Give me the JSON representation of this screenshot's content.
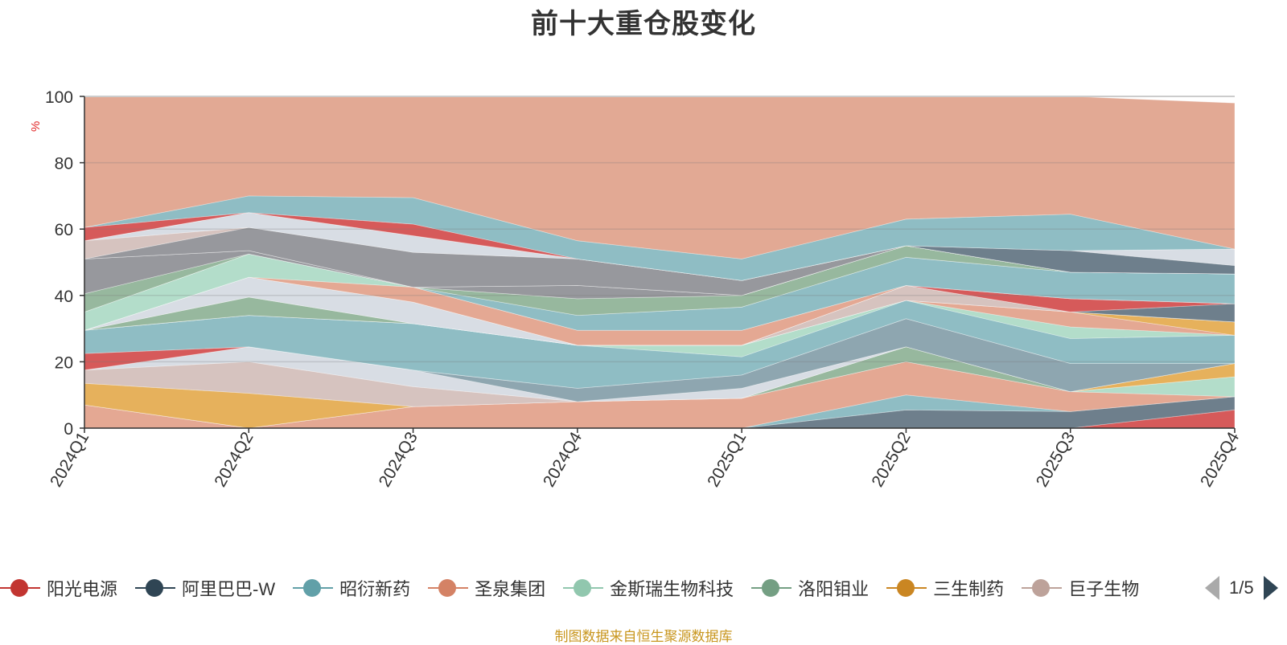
{
  "title": "前十大重仓股变化",
  "source_note": "制图数据来自恒生聚源数据库",
  "legend_page": "1/5",
  "chart_data": {
    "type": "area",
    "stacked": true,
    "title": "前十大重仓股变化",
    "ylabel": "%",
    "xlabel": "",
    "ylim": [
      0,
      100
    ],
    "yticks": [
      0,
      20,
      40,
      60,
      80,
      100
    ],
    "categories": [
      "2024Q1",
      "2024Q2",
      "2024Q3",
      "2024Q4",
      "2025Q1",
      "2025Q2",
      "2025Q3",
      "2025Q4"
    ],
    "boundaries": [
      [
        0,
        0,
        0,
        0,
        0,
        0,
        0,
        0
      ],
      [
        0,
        0,
        0,
        0,
        0,
        0,
        0,
        5.5
      ],
      [
        0,
        0,
        0,
        0,
        0,
        5.5,
        5,
        9.5
      ],
      [
        0,
        0,
        0,
        0,
        0,
        10,
        5,
        9.5
      ],
      [
        7,
        0,
        6.5,
        8,
        9,
        20,
        11,
        9.5
      ],
      [
        7,
        0,
        6.5,
        8,
        9,
        20,
        11,
        15.5
      ],
      [
        7,
        0,
        6.5,
        8,
        9,
        24.5,
        11,
        15.5
      ],
      [
        13.5,
        10.5,
        6.5,
        8,
        9,
        24.5,
        11,
        19.5
      ],
      [
        17.5,
        20,
        12.5,
        8,
        9,
        24.5,
        11,
        19.5
      ],
      [
        17.5,
        24.5,
        17.5,
        8,
        12,
        24.5,
        11,
        19.5
      ],
      [
        17.5,
        24.5,
        17.5,
        12,
        16,
        33,
        19.5,
        19.5
      ],
      [
        22.5,
        24.5,
        17.5,
        12,
        16,
        33,
        19.5,
        19.5
      ],
      [
        29.5,
        34,
        31.5,
        25,
        21.5,
        38.5,
        27,
        28
      ],
      [
        29.5,
        34,
        31.5,
        25,
        25,
        38.5,
        30.5,
        28
      ],
      [
        29.5,
        34,
        31.5,
        25,
        25,
        38.5,
        35,
        28
      ],
      [
        29.5,
        34,
        31.5,
        25,
        25,
        38.5,
        35,
        32
      ],
      [
        29.5,
        39.5,
        31.5,
        25,
        25,
        38.5,
        35,
        32
      ],
      [
        29.5,
        39.5,
        31.5,
        25,
        25,
        43,
        35,
        32
      ],
      [
        29.5,
        45.5,
        38,
        25,
        25,
        43,
        35,
        32
      ],
      [
        29.5,
        45.5,
        38,
        25,
        25,
        43,
        35,
        37.5
      ],
      [
        29.5,
        45.5,
        38,
        25,
        25,
        43,
        39,
        37.5
      ],
      [
        29.5,
        45.5,
        42.5,
        29.5,
        29.5,
        43,
        39,
        37.5
      ],
      [
        35,
        52.5,
        42.5,
        29.5,
        29.5,
        43,
        39,
        37.5
      ],
      [
        35,
        52.5,
        42.5,
        34,
        36.5,
        51.5,
        47,
        46.5
      ],
      [
        35,
        52.5,
        42.5,
        34,
        36.5,
        51.5,
        47,
        46.5
      ],
      [
        40.5,
        52.5,
        42.5,
        39,
        40,
        55,
        47,
        46.5
      ],
      [
        40.5,
        52.5,
        42.5,
        39,
        40,
        55,
        47,
        46.5
      ],
      [
        51,
        53.5,
        42.5,
        43,
        40,
        55,
        47,
        46.5
      ],
      [
        51,
        53.5,
        42.5,
        43,
        40,
        55,
        47,
        46.5
      ],
      [
        51,
        53.5,
        42.5,
        43,
        40,
        55,
        47,
        46.5
      ],
      [
        51,
        60.5,
        53,
        51,
        44.5,
        55,
        47,
        46.5
      ],
      [
        56.5,
        60.5,
        53,
        51,
        44.5,
        55,
        47,
        46.5
      ],
      [
        56.5,
        65,
        58,
        51,
        44.5,
        55,
        47,
        46.5
      ],
      [
        56.5,
        65,
        58,
        51,
        44.5,
        55,
        53.5,
        49
      ],
      [
        56.5,
        65,
        58,
        51,
        44.5,
        55,
        53.5,
        54
      ],
      [
        60.5,
        65,
        61.5,
        51,
        44.5,
        55,
        53.5,
        54
      ],
      [
        60.5,
        70,
        69.5,
        56.5,
        51,
        63,
        64.5,
        54
      ],
      [
        100,
        100,
        100,
        100,
        100,
        100,
        100,
        98
      ]
    ],
    "series_fill_colors": [
      "#d65a5a",
      "#6e7f8c",
      "#8fbdc4",
      "#e4a893",
      "#b3ddca",
      "#97b89e",
      "#e6b15c",
      "#d6c3bf",
      "#d8dde4",
      "#8ea6b0",
      "#d65a5a",
      "#8fbdc4",
      "#b3ddca",
      "#e4a893",
      "#e6b15c",
      "#97b89e",
      "#d6c3bf",
      "#d8dde4",
      "#6e7f8c",
      "#d65a5a",
      "#e4a893",
      "#b3ddca",
      "#8fbdc4",
      "#e6b15c",
      "#97b89e",
      "#d6c3bf",
      "#97989d",
      "#8fbdc4",
      "#d65a5a",
      "#97989d",
      "#d6c3bf",
      "#d8dde4",
      "#6e7f8c",
      "#d8dde4",
      "#d65a5a",
      "#8fbdc4",
      "#e2a994"
    ],
    "legend": [
      {
        "name": "阳光电源",
        "color": "#c23531"
      },
      {
        "name": "阿里巴巴-W",
        "color": "#2f4554"
      },
      {
        "name": "昭衍新药",
        "color": "#61a0a8"
      },
      {
        "name": "圣泉集团",
        "color": "#d48265"
      },
      {
        "name": "金斯瑞生物科技",
        "color": "#91c7ae"
      },
      {
        "name": "洛阳钼业",
        "color": "#749f83"
      },
      {
        "name": "三生制药",
        "color": "#ca8622"
      },
      {
        "name": "巨子生物",
        "color": "#bda29a"
      }
    ]
  }
}
